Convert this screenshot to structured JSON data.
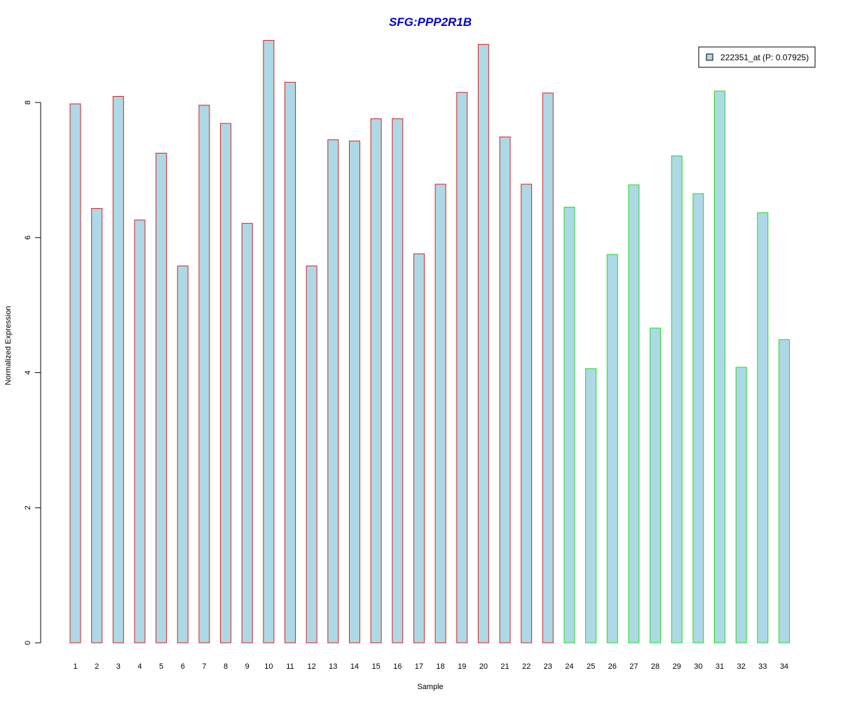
{
  "chart_data": {
    "type": "bar",
    "title": "SFG:PPP2R1B",
    "title_color": "#0000cc",
    "xlabel": "Sample",
    "ylabel": "Normalized Expression",
    "ylim": [
      0,
      9
    ],
    "yticks": [
      0,
      2,
      4,
      6,
      8
    ],
    "grid": false,
    "categories": [
      "1",
      "2",
      "3",
      "4",
      "5",
      "6",
      "7",
      "8",
      "9",
      "10",
      "11",
      "12",
      "13",
      "14",
      "15",
      "16",
      "17",
      "18",
      "19",
      "20",
      "21",
      "22",
      "23",
      "24",
      "25",
      "26",
      "27",
      "28",
      "29",
      "30",
      "31",
      "32",
      "33",
      "34"
    ],
    "values": [
      7.98,
      6.43,
      8.09,
      6.26,
      7.25,
      5.58,
      7.96,
      7.69,
      6.21,
      8.92,
      8.3,
      5.58,
      7.45,
      7.43,
      7.76,
      7.76,
      5.76,
      6.79,
      8.15,
      8.86,
      7.49,
      6.79,
      8.14,
      6.45,
      4.06,
      5.75,
      6.78,
      4.66,
      7.21,
      6.65,
      8.17,
      4.08,
      6.37,
      4.49
    ],
    "bar_fill": "#add8e6",
    "group_colors": {
      "group1": "#dd2020",
      "group2": "#22dd22"
    },
    "group1_count": 23,
    "legend": {
      "entries": [
        "222351_at (P: 0.07925)"
      ],
      "placement": "top-right"
    }
  }
}
